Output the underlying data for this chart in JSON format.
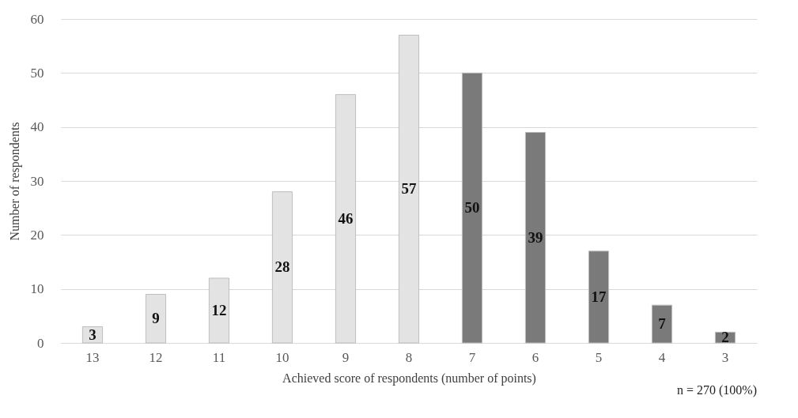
{
  "chart_data": {
    "type": "bar",
    "xlabel": "Achieved score of respondents (number of points)",
    "ylabel": "Number of respondents",
    "categories": [
      "13",
      "12",
      "11",
      "10",
      "9",
      "8",
      "7",
      "6",
      "5",
      "4",
      "3"
    ],
    "values": [
      3,
      9,
      12,
      28,
      46,
      57,
      50,
      39,
      17,
      7,
      2
    ],
    "colors": [
      "#e3e3e3",
      "#e3e3e3",
      "#e3e3e3",
      "#e3e3e3",
      "#e3e3e3",
      "#e3e3e3",
      "#7a7a7a",
      "#7a7a7a",
      "#7a7a7a",
      "#7a7a7a",
      "#7a7a7a"
    ],
    "ylim": [
      0,
      60
    ],
    "yticks": [
      0,
      10,
      20,
      30,
      40,
      50,
      60
    ],
    "grid": "y",
    "data_labels": true,
    "legend": false,
    "annotations": [
      "n = 270 (100%)"
    ]
  }
}
